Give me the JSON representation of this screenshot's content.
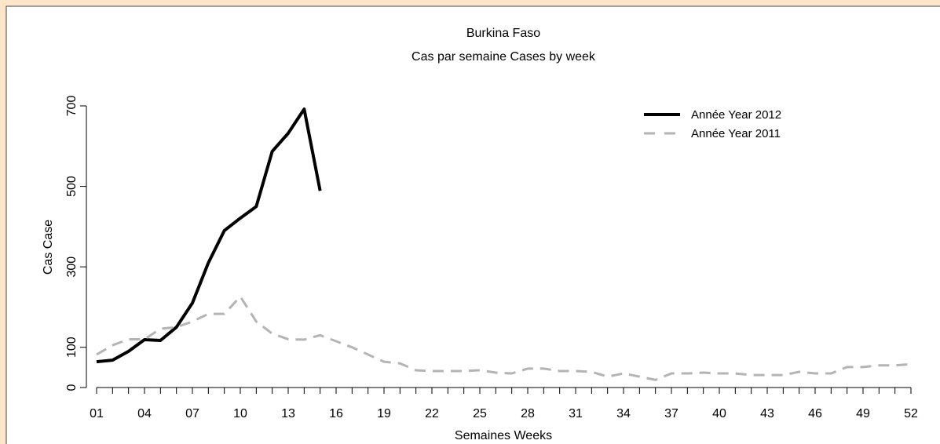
{
  "chart_data": {
    "type": "line",
    "title": "Burkina Faso",
    "subtitle": "Cas par semaine Cases by week",
    "x_label": "Semaines Weeks",
    "y_label": "Cas Case",
    "categories": [
      "01",
      null,
      null,
      "04",
      null,
      null,
      "07",
      null,
      null,
      "10",
      null,
      null,
      "13",
      null,
      null,
      "16",
      null,
      null,
      "19",
      null,
      null,
      "22",
      null,
      null,
      "25",
      null,
      null,
      "28",
      null,
      null,
      "31",
      null,
      null,
      "34",
      null,
      null,
      "37",
      null,
      null,
      "40",
      null,
      null,
      "43",
      null,
      null,
      "46",
      null,
      null,
      "49",
      null,
      null,
      "52"
    ],
    "series": [
      {
        "name": "Année Year 2012",
        "color": "#000000",
        "dash": false,
        "values": [
          64,
          68,
          90,
          119,
          117,
          150,
          210,
          310,
          390,
          421,
          450,
          587,
          632,
          692,
          489,
          null,
          null,
          null,
          null,
          null,
          null,
          null,
          null,
          null,
          null,
          null,
          null,
          null,
          null,
          null,
          null,
          null,
          null,
          null,
          null,
          null,
          null,
          null,
          null,
          null,
          null,
          null,
          null,
          null,
          null,
          null,
          null,
          null,
          null,
          null,
          null,
          null
        ]
      },
      {
        "name": "Année Year 2011",
        "color": "#b4b4b4",
        "dash": true,
        "values": [
          82,
          105,
          120,
          120,
          146,
          150,
          164,
          183,
          183,
          226,
          164,
          134,
          120,
          119,
          130,
          115,
          100,
          82,
          64,
          60,
          43,
          41,
          41,
          41,
          43,
          37,
          35,
          47,
          47,
          41,
          41,
          39,
          27,
          35,
          27,
          19,
          35,
          35,
          37,
          35,
          35,
          31,
          31,
          31,
          39,
          35,
          35,
          51,
          51,
          55,
          55,
          58
        ]
      }
    ],
    "ylim": [
      0,
      700
    ],
    "yticks": [
      0,
      100,
      300,
      500,
      700
    ],
    "legend": "upper right"
  }
}
